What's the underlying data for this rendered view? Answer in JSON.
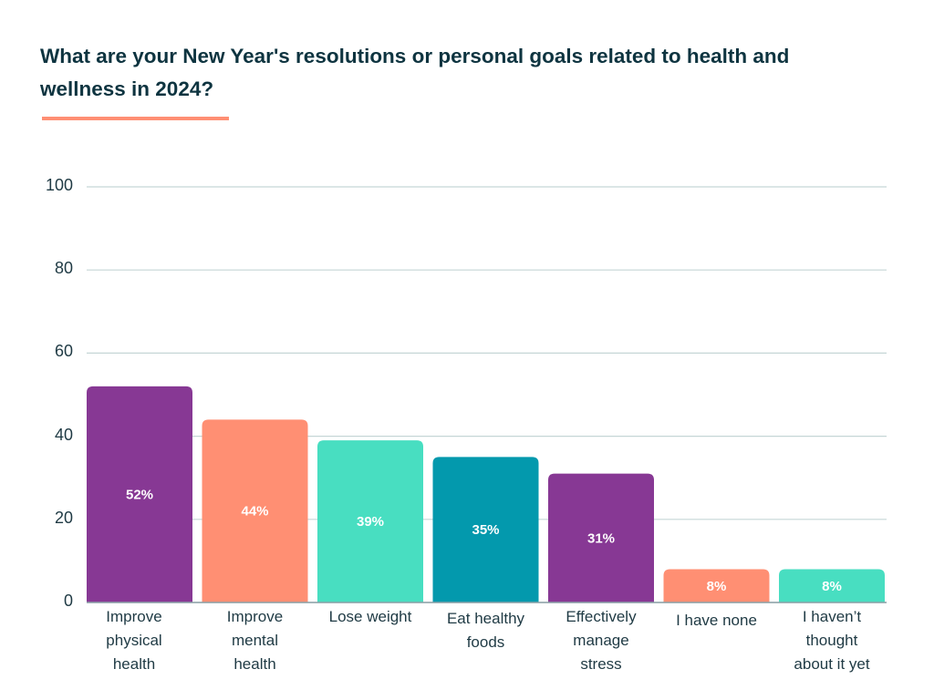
{
  "title": "What are your New Year's resolutions or personal goals related to health and wellness in 2024?",
  "colors": {
    "title": "#0e3440",
    "accent": "#ff8f73",
    "purple": "#873894",
    "salmon": "#ff8f73",
    "mint": "#48dec1",
    "teal": "#0399ad",
    "grid": "#c5d6d6"
  },
  "chart_data": {
    "type": "bar",
    "title": "What are your New Year's resolutions or personal goals related to health and wellness in 2024?",
    "categories": [
      "Improve physical health",
      "Improve mental health",
      "Lose weight",
      "Eat healthy foods",
      "Effectively manage stress",
      "I have none",
      "I haven’t thought about it yet"
    ],
    "values": [
      52,
      44,
      39,
      35,
      31,
      8,
      8
    ],
    "data_labels": [
      "52%",
      "44%",
      "39%",
      "35%",
      "31%",
      "8%",
      "8%"
    ],
    "bar_colors": [
      "#873894",
      "#ff8f73",
      "#48dec1",
      "#0399ad",
      "#873894",
      "#ff8f73",
      "#48dec1"
    ],
    "yticks": [
      0,
      20,
      40,
      60,
      80,
      100
    ],
    "ylim": [
      0,
      100
    ],
    "xlabel": "",
    "ylabel": "",
    "grid": true,
    "legend": "none"
  }
}
